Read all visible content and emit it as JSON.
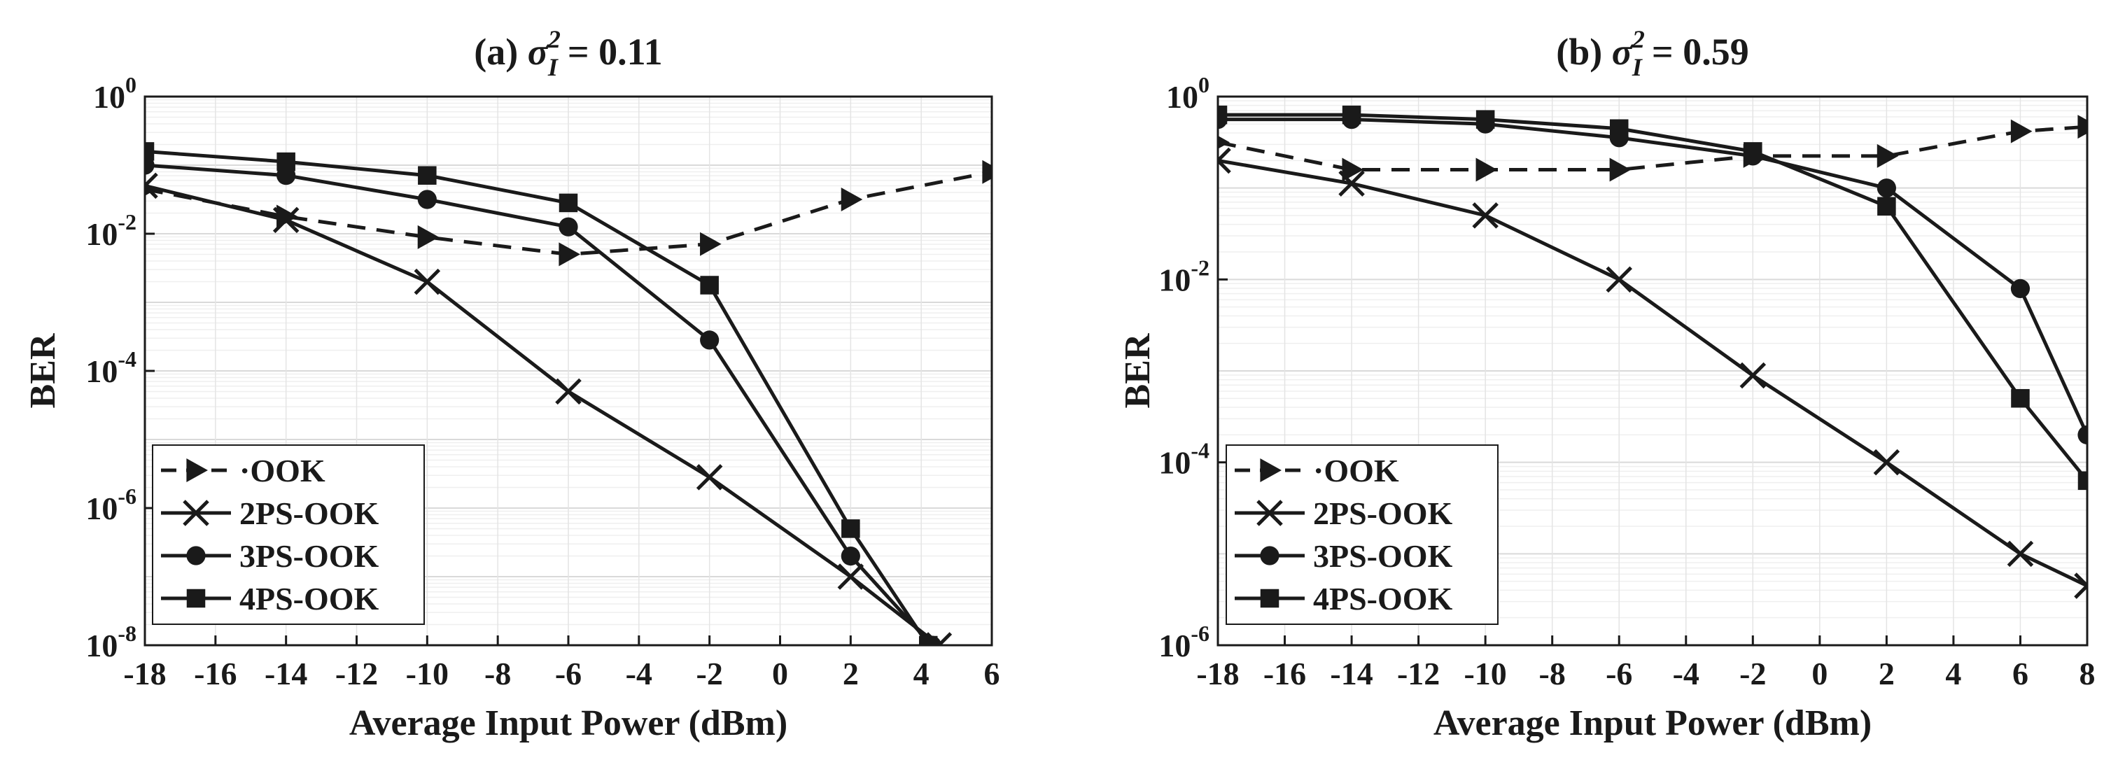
{
  "chart_data": [
    {
      "type": "line",
      "panel_label": "(a)",
      "title_symbol": "σ",
      "title_sup": "2",
      "title_sub": "I",
      "title_value": "= 0.11",
      "xlabel": "Average Input Power (dBm)",
      "ylabel": "BER",
      "yscale": "log",
      "xlim": [
        -18,
        6
      ],
      "ylim_exp": [
        -8,
        0
      ],
      "xticks": [
        -18,
        -16,
        -14,
        -12,
        -10,
        -8,
        -6,
        -4,
        -2,
        0,
        2,
        4,
        6
      ],
      "yticks": [
        {
          "exp": -8,
          "base": "10",
          "sup": "-8"
        },
        {
          "exp": -6,
          "base": "10",
          "sup": "-6"
        },
        {
          "exp": -4,
          "base": "10",
          "sup": "-4"
        },
        {
          "exp": -2,
          "base": "10",
          "sup": "-2"
        },
        {
          "exp": 0,
          "base": "10",
          "sup": "0"
        }
      ],
      "legend_position": "bottom-left",
      "series": [
        {
          "name": "OOK",
          "marker": "triangle-right",
          "dash": "dashed",
          "x": [
            -18,
            -14,
            -10,
            -6,
            -2,
            2,
            6
          ],
          "log10_y": [
            -1.35,
            -1.75,
            -2.05,
            -2.3,
            -2.15,
            -1.5,
            -1.1
          ]
        },
        {
          "name": "2PS-OOK",
          "marker": "x",
          "dash": "solid",
          "x": [
            -18,
            -14,
            -10,
            -6,
            -2,
            2,
            4.5
          ],
          "log10_y": [
            -1.3,
            -1.8,
            -2.7,
            -4.3,
            -5.55,
            -7.0,
            -8.0
          ]
        },
        {
          "name": "3PS-OOK",
          "marker": "circle",
          "dash": "solid",
          "x": [
            -18,
            -14,
            -10,
            -6,
            -2,
            2,
            4.3
          ],
          "log10_y": [
            -1.0,
            -1.15,
            -1.5,
            -1.9,
            -3.55,
            -6.7,
            -8.0
          ]
        },
        {
          "name": "4PS-OOK",
          "marker": "square",
          "dash": "solid",
          "x": [
            -18,
            -14,
            -10,
            -6,
            -2,
            2,
            4.2
          ],
          "log10_y": [
            -0.8,
            -0.95,
            -1.15,
            -1.55,
            -2.75,
            -6.3,
            -8.0
          ]
        }
      ]
    },
    {
      "type": "line",
      "panel_label": "(b)",
      "title_symbol": "σ",
      "title_sup": "2",
      "title_sub": "I",
      "title_value": "= 0.59",
      "xlabel": "Average Input Power (dBm)",
      "ylabel": "BER",
      "yscale": "log",
      "xlim": [
        -18,
        8
      ],
      "ylim_exp": [
        -6,
        0
      ],
      "xticks": [
        -18,
        -16,
        -14,
        -12,
        -10,
        -8,
        -6,
        -4,
        -2,
        0,
        2,
        4,
        6,
        8
      ],
      "yticks": [
        {
          "exp": -6,
          "base": "10",
          "sup": "-6"
        },
        {
          "exp": -4,
          "base": "10",
          "sup": "-4"
        },
        {
          "exp": -2,
          "base": "10",
          "sup": "-2"
        },
        {
          "exp": 0,
          "base": "10",
          "sup": "0"
        }
      ],
      "legend_position": "bottom-left",
      "series": [
        {
          "name": "OOK",
          "marker": "triangle-right",
          "dash": "dashed",
          "x": [
            -18,
            -14,
            -10,
            -6,
            -2,
            2,
            6,
            8
          ],
          "log10_y": [
            -0.5,
            -0.8,
            -0.8,
            -0.8,
            -0.65,
            -0.65,
            -0.38,
            -0.33
          ]
        },
        {
          "name": "2PS-OOK",
          "marker": "x",
          "dash": "solid",
          "x": [
            -18,
            -14,
            -10,
            -6,
            -2,
            2,
            6,
            8
          ],
          "log10_y": [
            -0.7,
            -0.95,
            -1.3,
            -2.0,
            -3.05,
            -4.0,
            -5.0,
            -5.35
          ]
        },
        {
          "name": "3PS-OOK",
          "marker": "circle",
          "dash": "solid",
          "x": [
            -18,
            -14,
            -10,
            -6,
            -2,
            2,
            6,
            8
          ],
          "log10_y": [
            -0.25,
            -0.25,
            -0.3,
            -0.45,
            -0.65,
            -1.0,
            -2.1,
            -3.7
          ]
        },
        {
          "name": "4PS-OOK",
          "marker": "square",
          "dash": "solid",
          "x": [
            -18,
            -14,
            -10,
            -6,
            -2,
            2,
            6,
            8
          ],
          "log10_y": [
            -0.2,
            -0.2,
            -0.25,
            -0.35,
            -0.6,
            -1.2,
            -3.3,
            -4.2
          ]
        }
      ]
    }
  ]
}
